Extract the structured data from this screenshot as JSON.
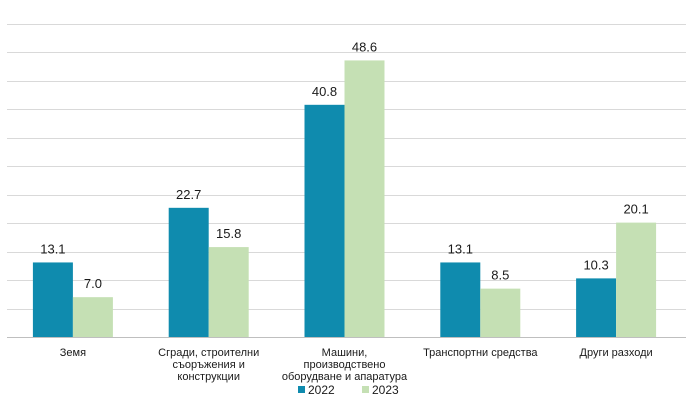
{
  "chart_data": {
    "type": "bar",
    "categories": [
      [
        "Земя"
      ],
      [
        "Сгради, строителни",
        "съоръжения и",
        "конструкции"
      ],
      [
        "Машини,",
        "производствено",
        "оборудване и апаратура"
      ],
      [
        "Транспортни средства"
      ],
      [
        "Други разходи"
      ]
    ],
    "series": [
      {
        "name": "2022",
        "values": [
          13.1,
          22.7,
          40.8,
          13.1,
          10.3
        ],
        "color": "#0f8bae"
      },
      {
        "name": "2023",
        "values": [
          7.0,
          15.8,
          48.6,
          8.5,
          20.1
        ],
        "color": "#c5e0b4"
      }
    ],
    "value_labels": [
      [
        "13.1",
        "22.7",
        "40.8",
        "13.1",
        "10.3"
      ],
      [
        "7.0",
        "15.8",
        "48.6",
        "8.5",
        "20.1"
      ]
    ],
    "ylim": [
      0,
      55
    ],
    "ytick_step": 5,
    "grid": true,
    "legend": "bottom",
    "title": "",
    "xlabel": "",
    "ylabel": ""
  }
}
